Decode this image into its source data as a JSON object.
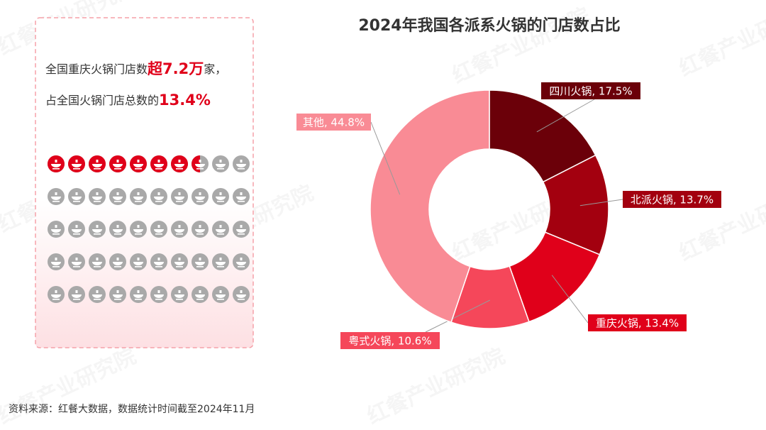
{
  "panel": {
    "line1_prefix": "全国重庆火锅门店数",
    "line1_highlight": "超7.2万",
    "line1_suffix": "家，",
    "line2_prefix": "占全国火锅门店总数的",
    "line2_highlight": "13.4%"
  },
  "icon_grid": {
    "count": 50,
    "filled": 7.5
  },
  "chart_data": {
    "type": "donut",
    "title": "2024年我国各派系火锅的门店数占比",
    "values": [
      17.5,
      13.7,
      13.4,
      10.6,
      44.8
    ],
    "value_labels": [
      "四川火锅, 17.5%",
      "北派火锅, 13.7%",
      "重庆火锅, 13.4%",
      "粤式火锅, 10.6%",
      "其他, 44.8%"
    ],
    "colors": [
      "#6b0009",
      "#a3000f",
      "#e0001a",
      "#f5475a",
      "#f98b95"
    ]
  },
  "source": "资料来源：红餐大数据，数据统计时间截至2024年11月",
  "watermark": "红餐产业研究院"
}
